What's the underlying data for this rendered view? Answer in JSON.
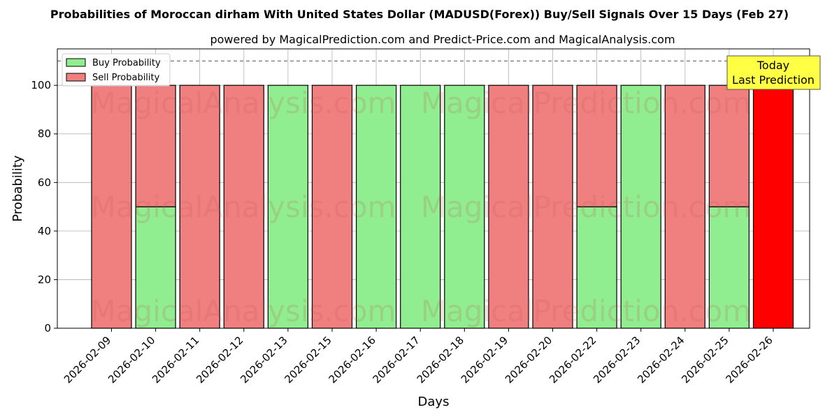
{
  "title": "Probabilities of Moroccan dirham With United States Dollar (MADUSD(Forex)) Buy/Sell Signals Over 15 Days (Feb 27)",
  "subtitle": "powered by MagicalPrediction.com and Predict-Price.com and MagicalAnalysis.com",
  "watermarks": [
    "MagicalAnalysis.com",
    "MagicalPrediction.com"
  ],
  "today_box": {
    "line1": "Today",
    "line2": "Last Prediction",
    "color": "#ffff44"
  },
  "colors": {
    "buy": "#90ee90",
    "sell": "#f08080",
    "today": "#ff0000",
    "grid": "#b0b0b0"
  },
  "chart_data": {
    "type": "bar",
    "stacked": true,
    "xlabel": "Days",
    "ylabel": "Probability",
    "ylim": [
      0,
      115
    ],
    "yticks": [
      0,
      20,
      40,
      60,
      80,
      100
    ],
    "reference_line": 110,
    "grid": true,
    "legend_position": "top-left",
    "categories": [
      "2026-02-09",
      "2026-02-10",
      "2026-02-11",
      "2026-02-12",
      "2026-02-13",
      "2026-02-15",
      "2026-02-16",
      "2026-02-17",
      "2026-02-18",
      "2026-02-19",
      "2026-02-20",
      "2026-02-22",
      "2026-02-23",
      "2026-02-24",
      "2026-02-25",
      "2026-02-26"
    ],
    "series": [
      {
        "name": "Buy Probability",
        "values": [
          0,
          50,
          0,
          0,
          100,
          0,
          100,
          100,
          100,
          0,
          0,
          50,
          100,
          0,
          50,
          0
        ]
      },
      {
        "name": "Sell Probability",
        "values": [
          100,
          50,
          100,
          100,
          0,
          100,
          0,
          0,
          0,
          100,
          100,
          50,
          0,
          100,
          50,
          100
        ]
      }
    ]
  }
}
